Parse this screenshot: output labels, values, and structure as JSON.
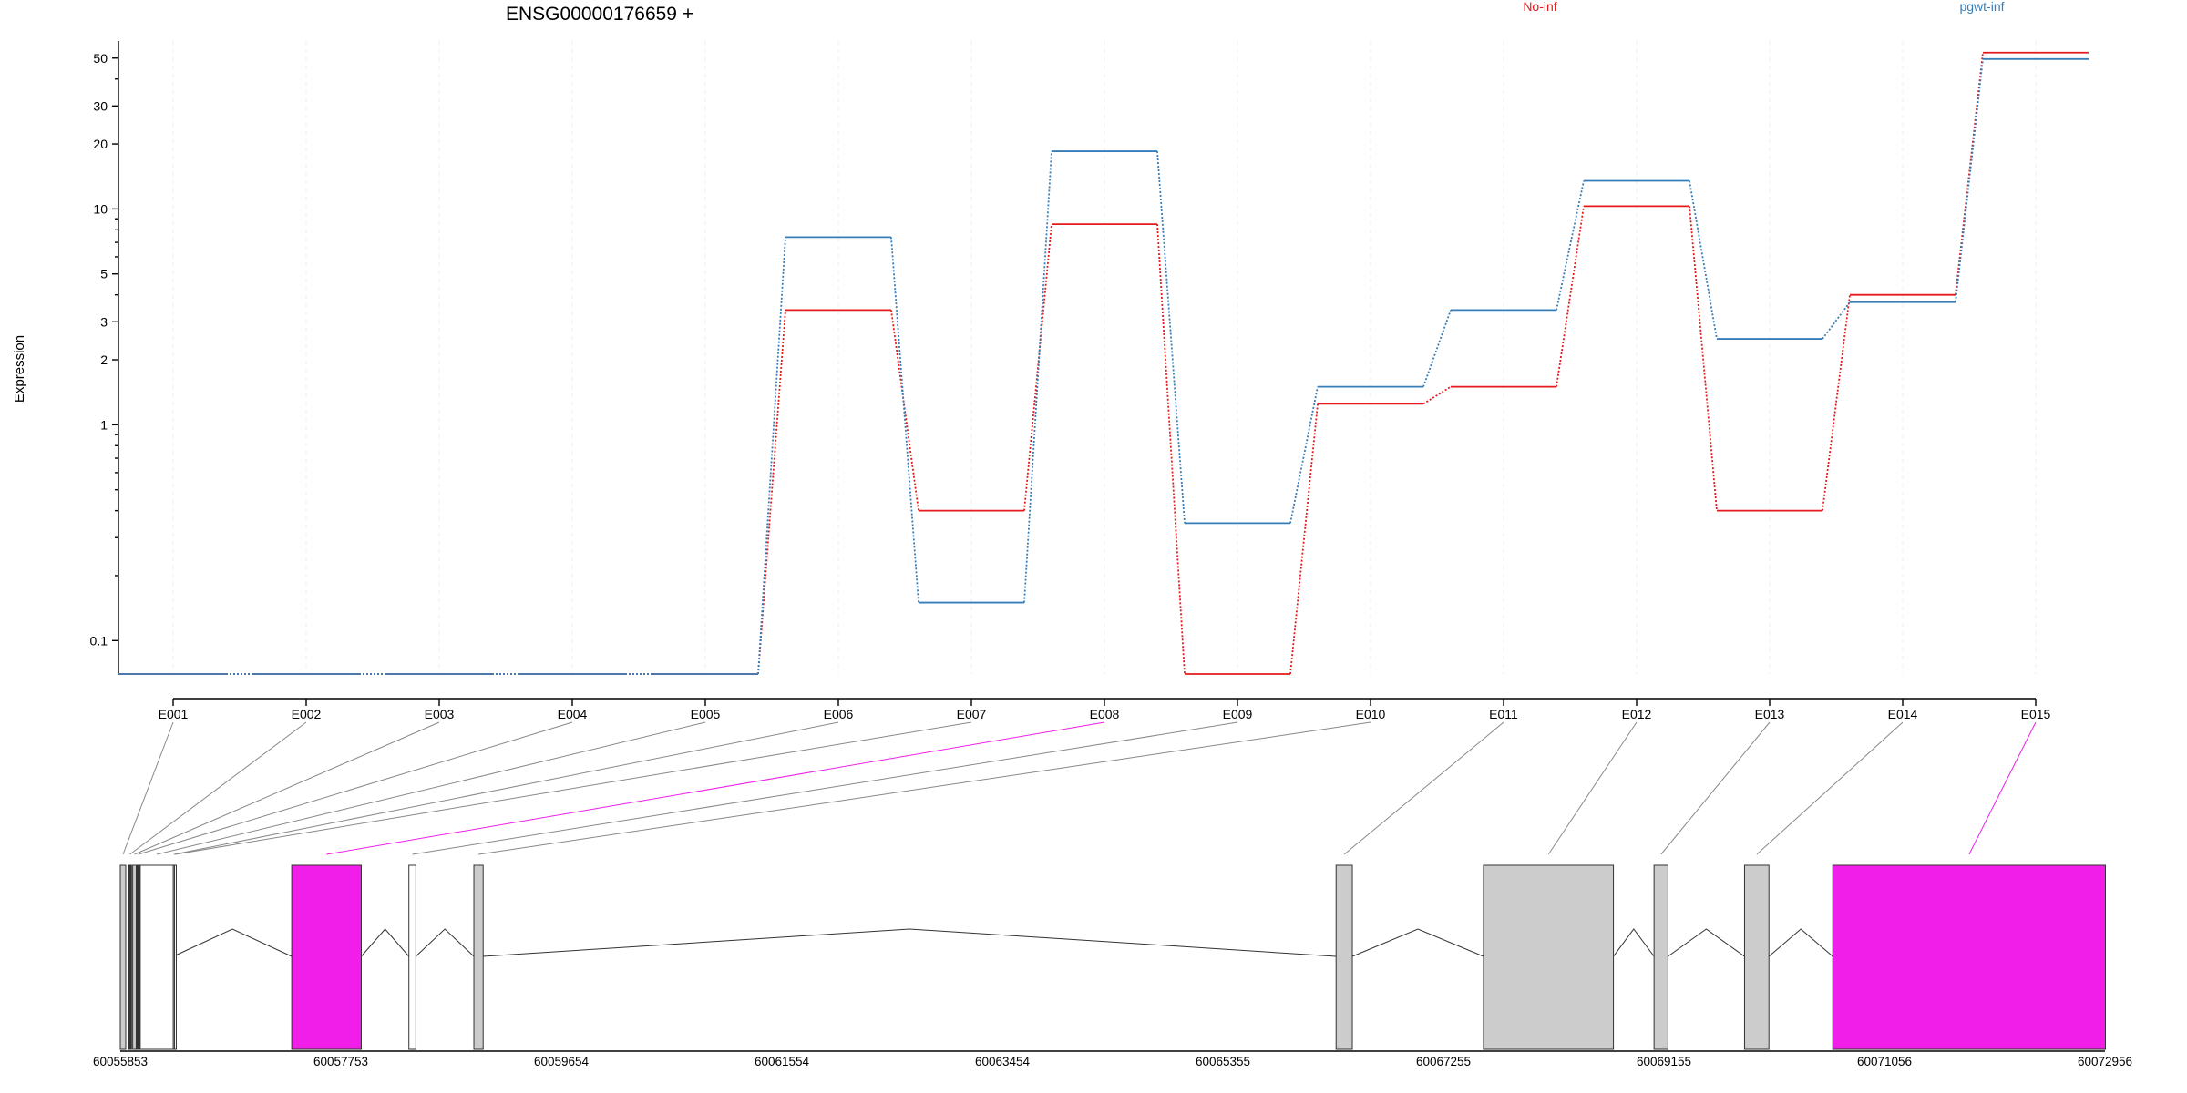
{
  "figure": {
    "title": "ENSG00000176659 +"
  },
  "chart_data": {
    "type": "line",
    "title": "ENSG00000176659 +",
    "xlabel": "",
    "ylabel": "Expression",
    "y_scale": "log",
    "y_ticks": [
      0.1,
      1,
      2,
      3,
      5,
      10,
      20,
      30,
      50
    ],
    "y_tick_labels": [
      "0.1",
      "1",
      "2",
      "3",
      "5",
      "10",
      "20",
      "30",
      "50"
    ],
    "ylim": [
      0.07,
      60
    ],
    "categories": [
      "E001",
      "E002",
      "E003",
      "E004",
      "E005",
      "E006",
      "E007",
      "E008",
      "E009",
      "E010",
      "E011",
      "E012",
      "E013",
      "E014",
      "E015"
    ],
    "grid": true,
    "legend_position": "top",
    "series": [
      {
        "name": "No-inf",
        "color": "#e41a1c",
        "values": [
          0.07,
          0.07,
          0.07,
          0.07,
          0.07,
          3.4,
          0.4,
          8.5,
          0.07,
          1.25,
          1.5,
          10.3,
          0.4,
          4.0,
          53
        ]
      },
      {
        "name": "pgwt-inf",
        "color": "#377eb8",
        "values": [
          0.07,
          0.07,
          0.07,
          0.07,
          0.07,
          7.4,
          0.15,
          18.5,
          0.35,
          1.5,
          3.4,
          13.5,
          2.5,
          3.7,
          49.5
        ]
      }
    ],
    "gene_model": {
      "coordinate_ticks": [
        "60055853",
        "60057753",
        "60059654",
        "60061554",
        "60063454",
        "60065355",
        "60067255",
        "60069155",
        "60071056",
        "60072956"
      ],
      "coordinate_range": [
        60055853,
        60072956
      ],
      "highlight_color": "#f01ee8",
      "exons": [
        {
          "label": "E001",
          "start": 60055853,
          "end": 60055900,
          "color": "#cccccc",
          "highlight": false
        },
        {
          "label": "E002",
          "start": 60055920,
          "end": 60055950,
          "color": "#333333",
          "highlight": false
        },
        {
          "label": "E003",
          "start": 60055960,
          "end": 60055990,
          "color": "#cccccc",
          "highlight": false
        },
        {
          "label": "E004",
          "start": 60055995,
          "end": 60056020,
          "color": "#333333",
          "highlight": false
        },
        {
          "label": "E005",
          "start": 60056025,
          "end": 60056310,
          "color": "#ffffff",
          "highlight": false
        },
        {
          "label": "E006",
          "start": 60056310,
          "end": 60056320,
          "color": "#ffffff",
          "highlight": false
        },
        {
          "label": "E007",
          "start": 60056320,
          "end": 60056330,
          "color": "#ffffff",
          "highlight": false
        },
        {
          "label": "E008",
          "start": 60057330,
          "end": 60057930,
          "color": "#f01ee8",
          "highlight": true
        },
        {
          "label": "E009",
          "start": 60058340,
          "end": 60058400,
          "color": "#ffffff",
          "highlight": false
        },
        {
          "label": "E010",
          "start": 60058900,
          "end": 60058980,
          "color": "#cccccc",
          "highlight": false
        },
        {
          "label": "E011",
          "start": 60066330,
          "end": 60066470,
          "color": "#cccccc",
          "highlight": false
        },
        {
          "label": "E012",
          "start": 60067600,
          "end": 60068720,
          "color": "#cccccc",
          "highlight": false
        },
        {
          "label": "E013",
          "start": 60069070,
          "end": 60069190,
          "color": "#cccccc",
          "highlight": false
        },
        {
          "label": "E014",
          "start": 60069850,
          "end": 60070060,
          "color": "#cccccc",
          "highlight": false
        },
        {
          "label": "E015",
          "start": 60070610,
          "end": 60072960,
          "color": "#f01ee8",
          "highlight": true
        }
      ]
    }
  }
}
